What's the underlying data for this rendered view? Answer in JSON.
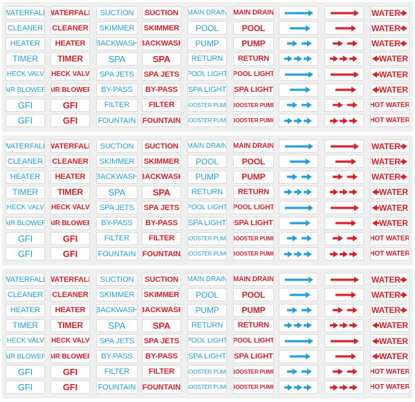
{
  "colors": {
    "blue": "#22a0dc",
    "red": "#dc1e28",
    "panel": "#efefef"
  },
  "sheets": [
    {
      "rows": [
        [
          {
            "text": "WATERFALL",
            "color": "blue"
          },
          {
            "text": "WATERFALL",
            "color": "red"
          },
          {
            "text": "SUCTION",
            "color": "blue"
          },
          {
            "text": "SUCTION",
            "color": "red"
          },
          {
            "text": "MAIN DRAIN",
            "color": "blue"
          },
          {
            "text": "MAIN DRAIN",
            "color": "red"
          },
          {
            "arrow": "right-long",
            "color": "blue"
          },
          {
            "arrow": "right-long",
            "color": "red"
          },
          {
            "text": "WATER",
            "arrow": "right",
            "color": "red"
          }
        ],
        [
          {
            "text": "CLEANER",
            "color": "blue"
          },
          {
            "text": "CLEANER",
            "color": "red"
          },
          {
            "text": "SKIMMER",
            "color": "blue"
          },
          {
            "text": "SKIMMER",
            "color": "red"
          },
          {
            "text": "POOL",
            "color": "blue"
          },
          {
            "text": "POOL",
            "color": "red"
          },
          {
            "arrow": "right-short",
            "color": "blue"
          },
          {
            "arrow": "right-short",
            "color": "red"
          },
          {
            "text": "WATER",
            "arrow": "right",
            "color": "red"
          }
        ],
        [
          {
            "text": "HEATER",
            "color": "blue"
          },
          {
            "text": "HEATER",
            "color": "red"
          },
          {
            "text": "BACKWASH",
            "color": "blue"
          },
          {
            "text": "BACKWASH",
            "color": "red"
          },
          {
            "text": "PUMP",
            "color": "blue"
          },
          {
            "text": "PUMP",
            "color": "red"
          },
          {
            "arrow": "double",
            "color": "blue"
          },
          {
            "arrow": "double",
            "color": "red"
          },
          {
            "text": "WATER",
            "arrow": "right",
            "color": "red"
          }
        ],
        [
          {
            "text": "TIMER",
            "color": "blue"
          },
          {
            "text": "TIMER",
            "color": "red"
          },
          {
            "text": "SPA",
            "color": "blue"
          },
          {
            "text": "SPA",
            "color": "red"
          },
          {
            "text": "RETURN",
            "color": "blue"
          },
          {
            "text": "RETURN",
            "color": "red"
          },
          {
            "arrow": "triple",
            "color": "blue"
          },
          {
            "arrow": "triple",
            "color": "red"
          },
          {
            "text": "WATER",
            "arrow": "left",
            "color": "red"
          }
        ],
        [
          {
            "text": "CHECK VALVE",
            "color": "blue"
          },
          {
            "text": "CHECK VALVE",
            "color": "red"
          },
          {
            "text": "SPA JETS",
            "color": "blue"
          },
          {
            "text": "SPA JETS",
            "color": "red"
          },
          {
            "text": "POOL LIGHT",
            "color": "blue"
          },
          {
            "text": "POOL LIGHT",
            "color": "red"
          },
          {
            "arrow": "right-long",
            "color": "blue"
          },
          {
            "arrow": "right-long",
            "color": "red"
          },
          {
            "text": "WATER",
            "arrow": "left",
            "color": "red"
          }
        ],
        [
          {
            "text": "AIR BLOWER",
            "color": "blue"
          },
          {
            "text": "AIR BLOWER",
            "color": "red"
          },
          {
            "text": "BY-PASS",
            "color": "blue"
          },
          {
            "text": "BY-PASS",
            "color": "red"
          },
          {
            "text": "SPA LIGHT",
            "color": "blue"
          },
          {
            "text": "SPA LIGHT",
            "color": "red"
          },
          {
            "arrow": "right-short",
            "color": "blue"
          },
          {
            "arrow": "right-short",
            "color": "red"
          },
          {
            "text": "WATER",
            "arrow": "left",
            "color": "red"
          }
        ],
        [
          {
            "text": "GFI",
            "color": "blue"
          },
          {
            "text": "GFI",
            "color": "red"
          },
          {
            "text": "FILTER",
            "color": "blue"
          },
          {
            "text": "FILTER",
            "color": "red"
          },
          {
            "text": "BOOSTER PUMP",
            "color": "blue"
          },
          {
            "text": "BOOSTER PUMP",
            "color": "red"
          },
          {
            "arrow": "double",
            "color": "blue"
          },
          {
            "arrow": "double",
            "color": "red"
          },
          {
            "text": "HOT WATER",
            "color": "red"
          }
        ],
        [
          {
            "text": "GFI",
            "color": "blue"
          },
          {
            "text": "GFI",
            "color": "red"
          },
          {
            "text": "FOUNTAIN",
            "color": "blue"
          },
          {
            "text": "FOUNTAIN",
            "color": "red"
          },
          {
            "text": "BOOSTER PUMP",
            "color": "blue"
          },
          {
            "text": "BOOSTER PUMP",
            "color": "red"
          },
          {
            "arrow": "triple",
            "color": "blue"
          },
          {
            "arrow": "triple",
            "color": "red"
          },
          {
            "text": "HOT WATER",
            "color": "red"
          }
        ]
      ]
    },
    {
      "rows": [
        [
          {
            "text": "WATERFALL",
            "color": "blue"
          },
          {
            "text": "WATERFALL",
            "color": "red"
          },
          {
            "text": "SUCTION",
            "color": "blue"
          },
          {
            "text": "SUCTION",
            "color": "red"
          },
          {
            "text": "MAIN DRAIN",
            "color": "blue"
          },
          {
            "text": "MAIN DRAIN",
            "color": "red"
          },
          {
            "arrow": "right-long",
            "color": "blue"
          },
          {
            "arrow": "right-long",
            "color": "red"
          },
          {
            "text": "WATER",
            "arrow": "right",
            "color": "red"
          }
        ],
        [
          {
            "text": "CLEANER",
            "color": "blue"
          },
          {
            "text": "CLEANER",
            "color": "red"
          },
          {
            "text": "SKIMMER",
            "color": "blue"
          },
          {
            "text": "SKIMMER",
            "color": "red"
          },
          {
            "text": "POOL",
            "color": "blue"
          },
          {
            "text": "POOL",
            "color": "red"
          },
          {
            "arrow": "right-short",
            "color": "blue"
          },
          {
            "arrow": "right-short",
            "color": "red"
          },
          {
            "text": "WATER",
            "arrow": "right",
            "color": "red"
          }
        ],
        [
          {
            "text": "HEATER",
            "color": "blue"
          },
          {
            "text": "HEATER",
            "color": "red"
          },
          {
            "text": "BACKWASH",
            "color": "blue"
          },
          {
            "text": "BACKWASH",
            "color": "red"
          },
          {
            "text": "PUMP",
            "color": "blue"
          },
          {
            "text": "PUMP",
            "color": "red"
          },
          {
            "arrow": "double",
            "color": "blue"
          },
          {
            "arrow": "double",
            "color": "red"
          },
          {
            "text": "WATER",
            "arrow": "right",
            "color": "red"
          }
        ],
        [
          {
            "text": "TIMER",
            "color": "blue"
          },
          {
            "text": "TIMER",
            "color": "red"
          },
          {
            "text": "SPA",
            "color": "blue"
          },
          {
            "text": "SPA",
            "color": "red"
          },
          {
            "text": "RETURN",
            "color": "blue"
          },
          {
            "text": "RETURN",
            "color": "red"
          },
          {
            "arrow": "triple",
            "color": "blue"
          },
          {
            "arrow": "triple",
            "color": "red"
          },
          {
            "text": "WATER",
            "arrow": "left",
            "color": "red"
          }
        ],
        [
          {
            "text": "CHECK VALVE",
            "color": "blue"
          },
          {
            "text": "CHECK VALVE",
            "color": "red"
          },
          {
            "text": "SPA JETS",
            "color": "blue"
          },
          {
            "text": "SPA JETS",
            "color": "red"
          },
          {
            "text": "POOL LIGHT",
            "color": "blue"
          },
          {
            "text": "POOL LIGHT",
            "color": "red"
          },
          {
            "arrow": "right-long",
            "color": "blue"
          },
          {
            "arrow": "right-long",
            "color": "red"
          },
          {
            "text": "WATER",
            "arrow": "left",
            "color": "red"
          }
        ],
        [
          {
            "text": "AIR BLOWER",
            "color": "blue"
          },
          {
            "text": "AIR BLOWER",
            "color": "red"
          },
          {
            "text": "BY-PASS",
            "color": "blue"
          },
          {
            "text": "BY-PASS",
            "color": "red"
          },
          {
            "text": "SPA LIGHT",
            "color": "blue"
          },
          {
            "text": "SPA LIGHT",
            "color": "red"
          },
          {
            "arrow": "right-short",
            "color": "blue"
          },
          {
            "arrow": "right-short",
            "color": "red"
          },
          {
            "text": "WATER",
            "arrow": "left",
            "color": "red"
          }
        ],
        [
          {
            "text": "GFI",
            "color": "blue"
          },
          {
            "text": "GFI",
            "color": "red"
          },
          {
            "text": "FILTER",
            "color": "blue"
          },
          {
            "text": "FILTER",
            "color": "red"
          },
          {
            "text": "BOOSTER PUMP",
            "color": "blue"
          },
          {
            "text": "BOOSTER PUMP",
            "color": "red"
          },
          {
            "arrow": "double",
            "color": "blue"
          },
          {
            "arrow": "double",
            "color": "red"
          },
          {
            "text": "HOT WATER",
            "color": "red"
          }
        ],
        [
          {
            "text": "GFI",
            "color": "blue"
          },
          {
            "text": "GFI",
            "color": "red"
          },
          {
            "text": "FOUNTAIN",
            "color": "blue"
          },
          {
            "text": "FOUNTAIN",
            "color": "red"
          },
          {
            "text": "BOOSTER PUMP",
            "color": "blue"
          },
          {
            "text": "BOOSTER PUMP",
            "color": "red"
          },
          {
            "arrow": "triple",
            "color": "blue"
          },
          {
            "arrow": "triple",
            "color": "red"
          },
          {
            "text": "HOT WATER",
            "color": "red"
          }
        ]
      ]
    },
    {
      "rows": [
        [
          {
            "text": "WATERFALL",
            "color": "blue"
          },
          {
            "text": "WATERFALL",
            "color": "red"
          },
          {
            "text": "SUCTION",
            "color": "blue"
          },
          {
            "text": "SUCTION",
            "color": "red"
          },
          {
            "text": "MAIN DRAIN",
            "color": "blue"
          },
          {
            "text": "MAIN DRAIN",
            "color": "red"
          },
          {
            "arrow": "right-long",
            "color": "blue"
          },
          {
            "arrow": "right-long",
            "color": "red"
          },
          {
            "text": "WATER",
            "arrow": "right",
            "color": "red"
          }
        ],
        [
          {
            "text": "CLEANER",
            "color": "blue"
          },
          {
            "text": "CLEANER",
            "color": "red"
          },
          {
            "text": "SKIMMER",
            "color": "blue"
          },
          {
            "text": "SKIMMER",
            "color": "red"
          },
          {
            "text": "POOL",
            "color": "blue"
          },
          {
            "text": "POOL",
            "color": "red"
          },
          {
            "arrow": "right-short",
            "color": "blue"
          },
          {
            "arrow": "right-short",
            "color": "red"
          },
          {
            "text": "WATER",
            "arrow": "right",
            "color": "red"
          }
        ],
        [
          {
            "text": "HEATER",
            "color": "blue"
          },
          {
            "text": "HEATER",
            "color": "red"
          },
          {
            "text": "BACKWASH",
            "color": "blue"
          },
          {
            "text": "BACKWASH",
            "color": "red"
          },
          {
            "text": "PUMP",
            "color": "blue"
          },
          {
            "text": "PUMP",
            "color": "red"
          },
          {
            "arrow": "double",
            "color": "blue"
          },
          {
            "arrow": "double",
            "color": "red"
          },
          {
            "text": "WATER",
            "arrow": "right",
            "color": "red"
          }
        ],
        [
          {
            "text": "TIMER",
            "color": "blue"
          },
          {
            "text": "TIMER",
            "color": "red"
          },
          {
            "text": "SPA",
            "color": "blue"
          },
          {
            "text": "SPA",
            "color": "red"
          },
          {
            "text": "RETURN",
            "color": "blue"
          },
          {
            "text": "RETURN",
            "color": "red"
          },
          {
            "arrow": "triple",
            "color": "blue"
          },
          {
            "arrow": "triple",
            "color": "red"
          },
          {
            "text": "WATER",
            "arrow": "left",
            "color": "red"
          }
        ],
        [
          {
            "text": "CHECK VALVE",
            "color": "blue"
          },
          {
            "text": "CHECK VALVE",
            "color": "red"
          },
          {
            "text": "SPA JETS",
            "color": "blue"
          },
          {
            "text": "SPA JETS",
            "color": "red"
          },
          {
            "text": "POOL LIGHT",
            "color": "blue"
          },
          {
            "text": "POOL LIGHT",
            "color": "red"
          },
          {
            "arrow": "right-long",
            "color": "blue"
          },
          {
            "arrow": "right-long",
            "color": "red"
          },
          {
            "text": "WATER",
            "arrow": "left",
            "color": "red"
          }
        ],
        [
          {
            "text": "AIR BLOWER",
            "color": "blue"
          },
          {
            "text": "AIR BLOWER",
            "color": "red"
          },
          {
            "text": "BY-PASS",
            "color": "blue"
          },
          {
            "text": "BY-PASS",
            "color": "red"
          },
          {
            "text": "SPA LIGHT",
            "color": "blue"
          },
          {
            "text": "SPA LIGHT",
            "color": "red"
          },
          {
            "arrow": "right-short",
            "color": "blue"
          },
          {
            "arrow": "right-short",
            "color": "red"
          },
          {
            "text": "WATER",
            "arrow": "left",
            "color": "red"
          }
        ],
        [
          {
            "text": "GFI",
            "color": "blue"
          },
          {
            "text": "GFI",
            "color": "red"
          },
          {
            "text": "FILTER",
            "color": "blue"
          },
          {
            "text": "FILTER",
            "color": "red"
          },
          {
            "text": "BOOSTER PUMP",
            "color": "blue"
          },
          {
            "text": "BOOSTER PUMP",
            "color": "red"
          },
          {
            "arrow": "double",
            "color": "blue"
          },
          {
            "arrow": "double",
            "color": "red"
          },
          {
            "text": "HOT WATER",
            "color": "red"
          }
        ],
        [
          {
            "text": "GFI",
            "color": "blue"
          },
          {
            "text": "GFI",
            "color": "red"
          },
          {
            "text": "FOUNTAIN",
            "color": "blue"
          },
          {
            "text": "FOUNTAIN",
            "color": "red"
          },
          {
            "text": "BOOSTER PUMP",
            "color": "blue"
          },
          {
            "text": "BOOSTER PUMP",
            "color": "red"
          },
          {
            "arrow": "triple",
            "color": "blue"
          },
          {
            "arrow": "triple",
            "color": "red"
          },
          {
            "text": "HOT WATER",
            "color": "red"
          }
        ]
      ]
    }
  ]
}
